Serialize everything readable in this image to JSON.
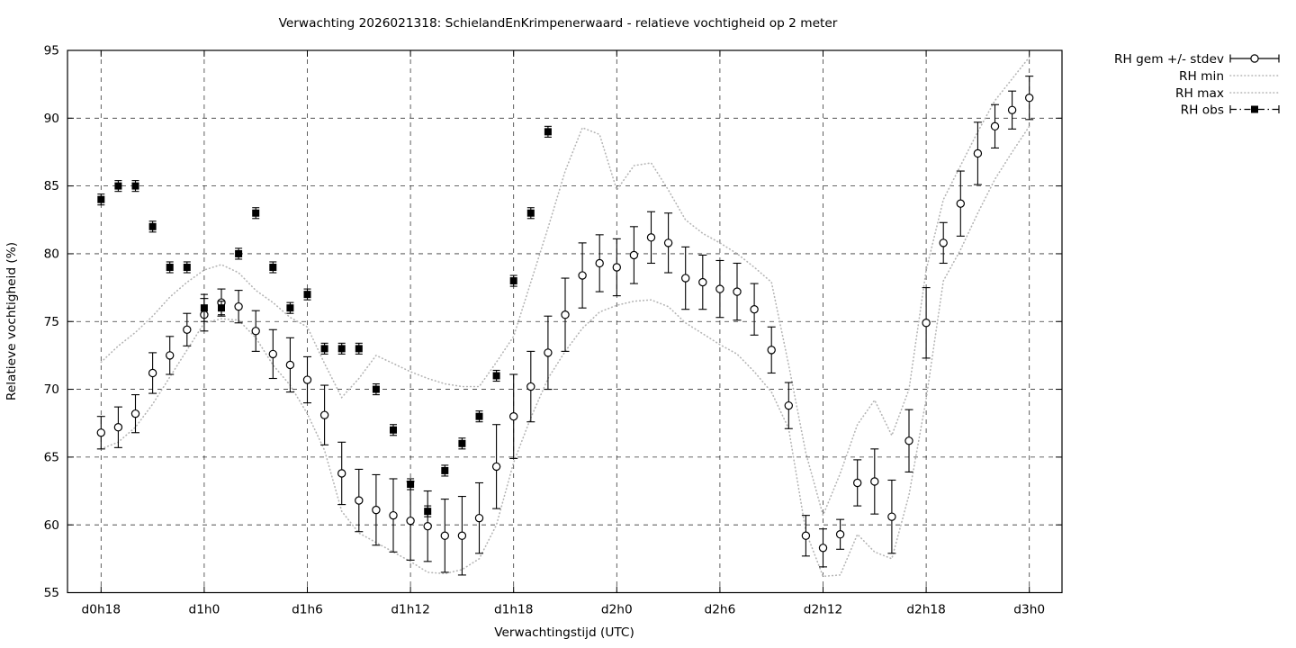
{
  "chart_data": {
    "type": "line",
    "title": "Verwachting 2026021318: SchielandEnKrimpenerwaard - relatieve vochtigheid op 2 meter",
    "xlabel": "Verwachtingstijd (UTC)",
    "ylabel": "Relatieve vochtigheid (%)",
    "ylim": [
      55,
      95
    ],
    "yticks": [
      55,
      60,
      65,
      70,
      75,
      80,
      85,
      90,
      95
    ],
    "xticks": [
      {
        "hour": 0,
        "label": "d0h18"
      },
      {
        "hour": 6,
        "label": "d1h0"
      },
      {
        "hour": 12,
        "label": "d1h6"
      },
      {
        "hour": 18,
        "label": "d1h12"
      },
      {
        "hour": 24,
        "label": "d1h18"
      },
      {
        "hour": 30,
        "label": "d2h0"
      },
      {
        "hour": 36,
        "label": "d2h6"
      },
      {
        "hour": 42,
        "label": "d2h12"
      },
      {
        "hour": 48,
        "label": "d2h18"
      },
      {
        "hour": 54,
        "label": "d3h0"
      }
    ],
    "grid": true,
    "legend_position": "outside-top-right",
    "colors": {
      "data": "#000000",
      "minmax_dotted": "#b4b4b4",
      "background": "#ffffff"
    },
    "x_is_hour_offset_from": "d0h18",
    "series": [
      {
        "name": "RH gem +/- stdev",
        "type": "errorbar",
        "marker": "open-circle",
        "values": [
          66.8,
          67.2,
          68.2,
          71.2,
          72.5,
          74.4,
          75.5,
          76.4,
          76.1,
          74.3,
          72.6,
          71.8,
          70.7,
          68.1,
          63.8,
          61.8,
          61.1,
          60.7,
          60.3,
          59.9,
          59.2,
          59.2,
          60.5,
          64.3,
          68.0,
          70.2,
          72.7,
          75.5,
          78.4,
          79.3,
          79.0,
          79.9,
          81.2,
          80.8,
          78.2,
          77.9,
          77.4,
          77.2,
          75.9,
          72.9,
          68.8,
          59.2,
          58.3,
          59.3,
          63.1,
          63.2,
          60.6,
          66.2,
          74.9,
          80.8,
          83.7,
          87.4,
          89.4,
          90.6,
          91.5
        ],
        "stdev": [
          1.2,
          1.5,
          1.4,
          1.5,
          1.4,
          1.2,
          1.2,
          1.0,
          1.2,
          1.5,
          1.8,
          2.0,
          1.7,
          2.2,
          2.3,
          2.3,
          2.6,
          2.7,
          2.9,
          2.6,
          2.7,
          2.9,
          2.6,
          3.1,
          3.1,
          2.6,
          2.7,
          2.7,
          2.4,
          2.1,
          2.1,
          2.1,
          1.9,
          2.2,
          2.3,
          2.0,
          2.1,
          2.1,
          1.9,
          1.7,
          1.7,
          1.5,
          1.4,
          1.1,
          1.7,
          2.4,
          2.7,
          2.3,
          2.6,
          1.5,
          2.4,
          2.3,
          1.6,
          1.4,
          1.6
        ]
      },
      {
        "name": "RH min",
        "type": "dotted-line",
        "values": [
          65.6,
          66.1,
          67.2,
          68.9,
          70.9,
          72.9,
          74.9,
          75.2,
          75.1,
          73.8,
          71.8,
          70.3,
          68.2,
          65.5,
          61.0,
          59.4,
          58.7,
          58.0,
          57.3,
          56.5,
          56.4,
          56.7,
          57.5,
          60.0,
          64.6,
          67.9,
          70.8,
          72.8,
          74.5,
          75.7,
          76.2,
          76.5,
          76.6,
          76.1,
          74.9,
          74.1,
          73.3,
          72.6,
          71.3,
          69.8,
          67.1,
          59.5,
          56.2,
          56.3,
          59.3,
          58.0,
          57.5,
          62.2,
          69.3,
          78.0,
          80.3,
          83.0,
          85.5,
          87.5,
          89.4
        ]
      },
      {
        "name": "RH max",
        "type": "dotted-line",
        "values": [
          72.0,
          73.2,
          74.2,
          75.4,
          76.8,
          77.9,
          78.8,
          79.2,
          78.6,
          77.3,
          76.4,
          75.3,
          74.6,
          71.9,
          69.4,
          70.8,
          72.5,
          71.9,
          71.3,
          70.8,
          70.4,
          70.2,
          70.2,
          72.0,
          73.9,
          77.9,
          81.9,
          86.1,
          89.3,
          88.8,
          84.7,
          86.5,
          86.7,
          84.7,
          82.5,
          81.5,
          80.8,
          80.0,
          79.0,
          77.9,
          71.8,
          65.3,
          60.7,
          63.8,
          67.4,
          69.2,
          66.6,
          70.0,
          78.8,
          84.0,
          86.5,
          89.0,
          91.3,
          92.9,
          94.5
        ]
      },
      {
        "name": "RH obs",
        "type": "errorbar",
        "marker": "filled-square",
        "values": [
          84,
          85,
          85,
          82,
          79,
          79,
          76,
          76,
          80,
          83,
          79,
          76,
          77,
          73,
          73,
          73,
          70,
          67,
          63,
          61,
          64,
          66,
          68,
          71,
          78,
          83,
          89
        ],
        "err": [
          0.4,
          0.4,
          0.4,
          0.4,
          0.4,
          0.4,
          1.0,
          0.5,
          0.4,
          0.4,
          0.4,
          0.4,
          0.4,
          0.4,
          0.4,
          0.4,
          0.4,
          0.4,
          0.4,
          0.4,
          0.4,
          0.4,
          0.4,
          0.4,
          0.4,
          0.4,
          0.4
        ]
      }
    ],
    "legend": [
      {
        "label": "RH gem +/- stdev",
        "style": "errbar-circle"
      },
      {
        "label": "RH min",
        "style": "dotted"
      },
      {
        "label": "RH max",
        "style": "dotted"
      },
      {
        "label": "RH obs",
        "style": "errbar-square"
      }
    ]
  }
}
